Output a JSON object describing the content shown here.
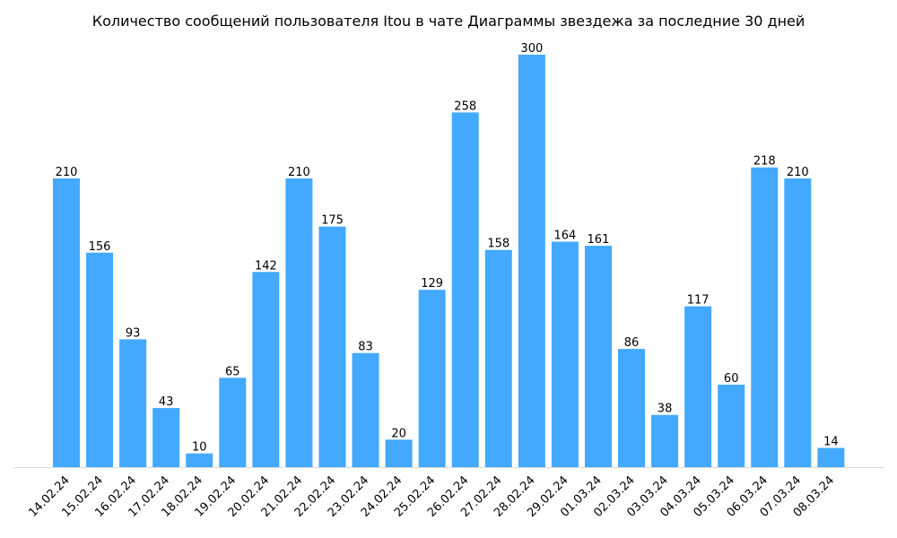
{
  "chart_data": {
    "type": "bar",
    "title": "Количество сообщений пользователя Itou в чате Диаграммы звездежа за последние 30 дней",
    "xlabel": "",
    "ylabel": "",
    "ylim": [
      0,
      300
    ],
    "grid": false,
    "bar_color": "#42a9ff",
    "categories": [
      "14.02.24",
      "15.02.24",
      "16.02.24",
      "17.02.24",
      "18.02.24",
      "19.02.24",
      "20.02.24",
      "21.02.24",
      "22.02.24",
      "23.02.24",
      "24.02.24",
      "25.02.24",
      "26.02.24",
      "27.02.24",
      "28.02.24",
      "29.02.24",
      "01.03.24",
      "02.03.24",
      "03.03.24",
      "04.03.24",
      "05.03.24",
      "06.03.24",
      "07.03.24",
      "08.03.24"
    ],
    "values": [
      210,
      156,
      93,
      43,
      10,
      65,
      142,
      210,
      175,
      83,
      20,
      129,
      258,
      158,
      300,
      164,
      161,
      86,
      38,
      117,
      60,
      218,
      210,
      14
    ]
  }
}
